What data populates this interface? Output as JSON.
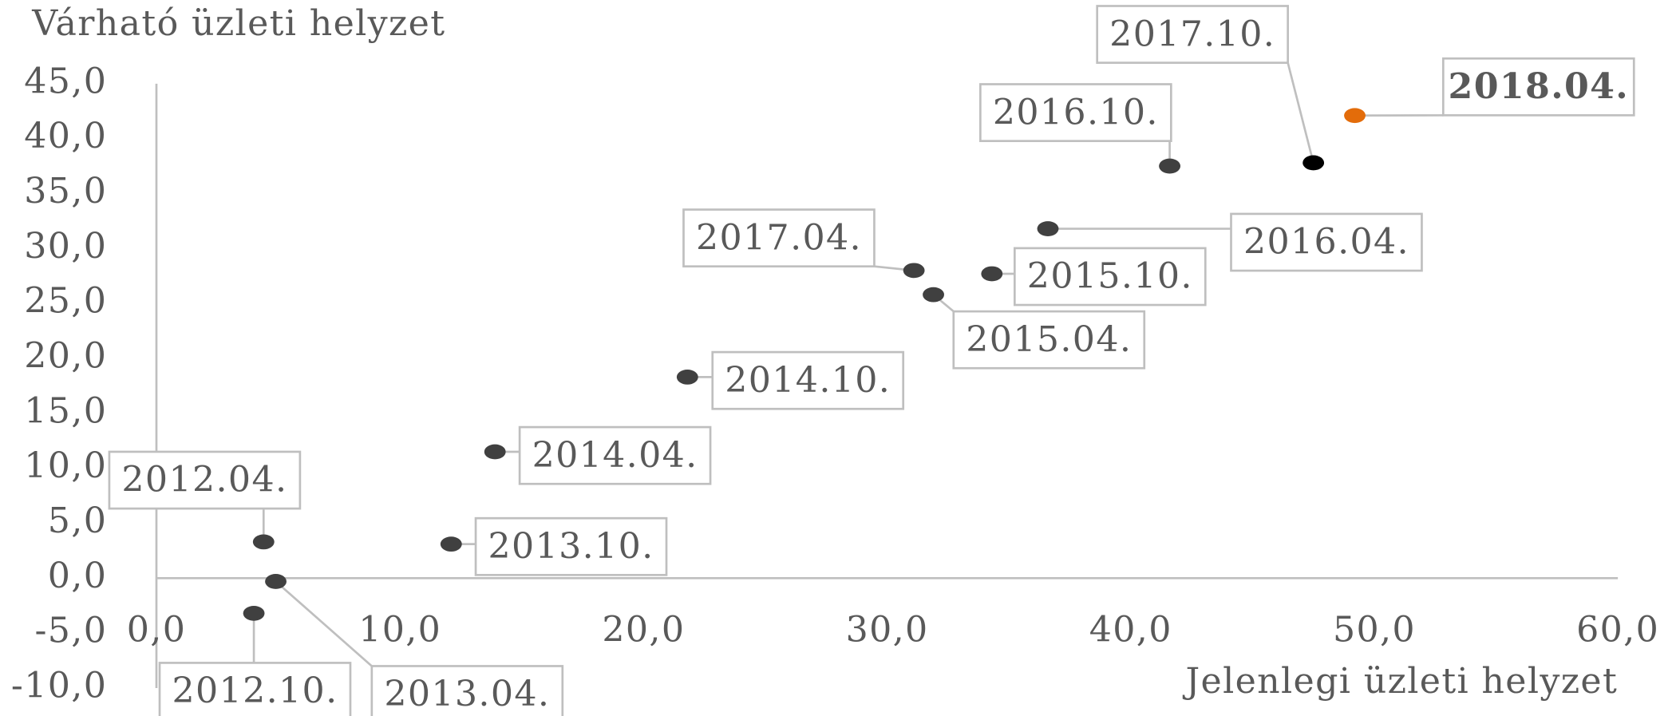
{
  "chart_data": {
    "type": "scatter",
    "y_label": "Várható üzleti helyzet",
    "x_label": "Jelenlegi üzleti helyzet",
    "labels": [
      "2012.04.",
      "2012.10.",
      "2013.04.",
      "2013.10.",
      "2014.04.",
      "2014.10.",
      "2015.04.",
      "2015.10.",
      "2016.04.",
      "2016.10.",
      "2017.04.",
      "2017.10.",
      "2018.04."
    ],
    "x": [
      4.4,
      4.0,
      4.9,
      12.1,
      13.9,
      21.8,
      31.9,
      34.3,
      36.6,
      41.6,
      31.1,
      47.5,
      49.2
    ],
    "y": [
      3.3,
      -3.2,
      -0.3,
      3.1,
      11.5,
      18.3,
      25.8,
      27.7,
      31.8,
      37.5,
      28.0,
      37.8,
      42.1
    ],
    "colors": [
      "#404040",
      "#404040",
      "#404040",
      "#404040",
      "#404040",
      "#404040",
      "#404040",
      "#404040",
      "#404040",
      "#404040",
      "#404040",
      "#000000",
      "#e36c0a"
    ],
    "xlim": [
      0,
      60
    ],
    "ylim": [
      -10,
      45
    ],
    "xticks": [
      {
        "value": 0,
        "label": "0,0"
      },
      {
        "value": 10,
        "label": "10,0"
      },
      {
        "value": 20,
        "label": "20,0"
      },
      {
        "value": 30,
        "label": "30,0"
      },
      {
        "value": 40,
        "label": "40,0"
      },
      {
        "value": 50,
        "label": "50,0"
      },
      {
        "value": 60,
        "label": "60,0"
      }
    ],
    "yticks": [
      {
        "value": -10,
        "label": "-10,0"
      },
      {
        "value": -5,
        "label": "-5,0"
      },
      {
        "value": 0,
        "label": "0,0"
      },
      {
        "value": 5,
        "label": "5,0"
      },
      {
        "value": 10,
        "label": "10,0"
      },
      {
        "value": 15,
        "label": "15,0"
      },
      {
        "value": 20,
        "label": "20,0"
      },
      {
        "value": 25,
        "label": "25,0"
      },
      {
        "value": 30,
        "label": "30,0"
      },
      {
        "value": 35,
        "label": "35,0"
      },
      {
        "value": 40,
        "label": "40,0"
      },
      {
        "value": 45,
        "label": "45,0"
      }
    ]
  }
}
